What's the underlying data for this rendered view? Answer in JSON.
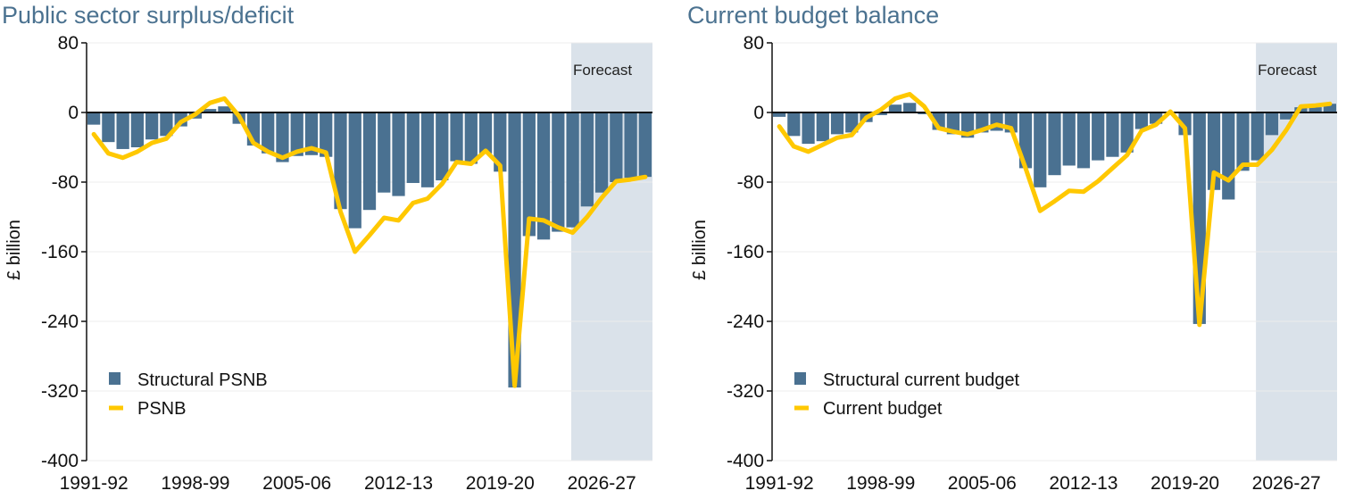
{
  "colors": {
    "bar": "#4a7191",
    "line": "#ffc800",
    "forecast_shade": "#dae2ea",
    "title": "#4b7290"
  },
  "chart_data": [
    {
      "type": "bar+line",
      "title": "Public sector surplus/deficit",
      "ylabel": "£ billion",
      "ylim": [
        -400,
        80
      ],
      "yticks": [
        "80",
        "0",
        "-80",
        "-160",
        "-240",
        "-320",
        "-400"
      ],
      "xtick_labels": [
        "1991-92",
        "1998-99",
        "2005-06",
        "2012-13",
        "2019-20",
        "2026-27"
      ],
      "forecast_label": "Forecast",
      "forecast_start": "2024-25",
      "legend": {
        "position": "bottom-left",
        "bar_label": "Structural PSNB",
        "line_label": "PSNB"
      },
      "categories": [
        "1991-92",
        "1992-93",
        "1993-94",
        "1994-95",
        "1995-96",
        "1996-97",
        "1997-98",
        "1998-99",
        "1999-00",
        "2000-01",
        "2001-02",
        "2002-03",
        "2003-04",
        "2004-05",
        "2005-06",
        "2006-07",
        "2007-08",
        "2008-09",
        "2009-10",
        "2010-11",
        "2011-12",
        "2012-13",
        "2013-14",
        "2014-15",
        "2015-16",
        "2016-17",
        "2017-18",
        "2018-19",
        "2019-20",
        "2020-21",
        "2021-22",
        "2022-23",
        "2023-24",
        "2024-25",
        "2025-26",
        "2026-27",
        "2027-28",
        "2028-29",
        "2029-30"
      ],
      "series": [
        {
          "name": "Structural PSNB",
          "kind": "bar",
          "values": [
            -14,
            -34,
            -42,
            -40,
            -31,
            -27,
            -16,
            -7,
            4,
            7,
            -13,
            -38,
            -47,
            -57,
            -50,
            -49,
            -51,
            -111,
            -133,
            -112,
            -92,
            -96,
            -81,
            -86,
            -78,
            -56,
            -59,
            -47,
            -68,
            -316,
            -142,
            -146,
            -137,
            -132,
            -108,
            -92,
            -80,
            -75,
            -74
          ]
        },
        {
          "name": "PSNB",
          "kind": "line",
          "values": [
            -25,
            -47,
            -52,
            -45,
            -35,
            -30,
            -11,
            -2,
            11,
            16,
            -4,
            -35,
            -45,
            -52,
            -45,
            -41,
            -46,
            -114,
            -160,
            -141,
            -121,
            -124,
            -104,
            -99,
            -82,
            -57,
            -59,
            -44,
            -61,
            -314,
            -122,
            -124,
            -132,
            -138,
            -120,
            -98,
            -79,
            -77,
            -74
          ]
        }
      ]
    },
    {
      "type": "bar+line",
      "title": "Current budget balance",
      "ylabel": "£ billion",
      "ylim": [
        -400,
        80
      ],
      "yticks": [
        "80",
        "0",
        "-80",
        "-160",
        "-240",
        "-320",
        "-400"
      ],
      "xtick_labels": [
        "1991-92",
        "1998-99",
        "2005-06",
        "2012-13",
        "2019-20",
        "2026-27"
      ],
      "forecast_label": "Forecast",
      "forecast_start": "2024-25",
      "legend": {
        "position": "bottom-left",
        "bar_label": "Structural current budget",
        "line_label": "Current budget"
      },
      "categories": [
        "1991-92",
        "1992-93",
        "1993-94",
        "1994-95",
        "1995-96",
        "1996-97",
        "1997-98",
        "1998-99",
        "1999-00",
        "2000-01",
        "2001-02",
        "2002-03",
        "2003-04",
        "2004-05",
        "2005-06",
        "2006-07",
        "2007-08",
        "2008-09",
        "2009-10",
        "2010-11",
        "2011-12",
        "2012-13",
        "2013-14",
        "2014-15",
        "2015-16",
        "2016-17",
        "2017-18",
        "2018-19",
        "2019-20",
        "2020-21",
        "2021-22",
        "2022-23",
        "2023-24",
        "2024-25",
        "2025-26",
        "2026-27",
        "2027-28",
        "2028-29",
        "2029-30"
      ],
      "series": [
        {
          "name": "Structural current budget",
          "kind": "bar",
          "values": [
            -5,
            -27,
            -36,
            -33,
            -25,
            -23,
            -11,
            -3,
            9,
            11,
            -2,
            -20,
            -25,
            -29,
            -23,
            -21,
            -23,
            -64,
            -86,
            -72,
            -61,
            -64,
            -55,
            -51,
            -46,
            -19,
            -13,
            -1,
            -26,
            -243,
            -89,
            -100,
            -67,
            -55,
            -26,
            -8,
            6,
            6,
            10
          ]
        },
        {
          "name": "Current budget",
          "kind": "line",
          "values": [
            -16,
            -39,
            -45,
            -37,
            -29,
            -26,
            -6,
            3,
            16,
            21,
            7,
            -18,
            -22,
            -25,
            -20,
            -14,
            -18,
            -64,
            -113,
            -102,
            -90,
            -91,
            -79,
            -64,
            -49,
            -21,
            -14,
            1,
            -18,
            -244,
            -69,
            -78,
            -60,
            -60,
            -43,
            -20,
            7,
            8,
            10
          ]
        }
      ]
    }
  ]
}
